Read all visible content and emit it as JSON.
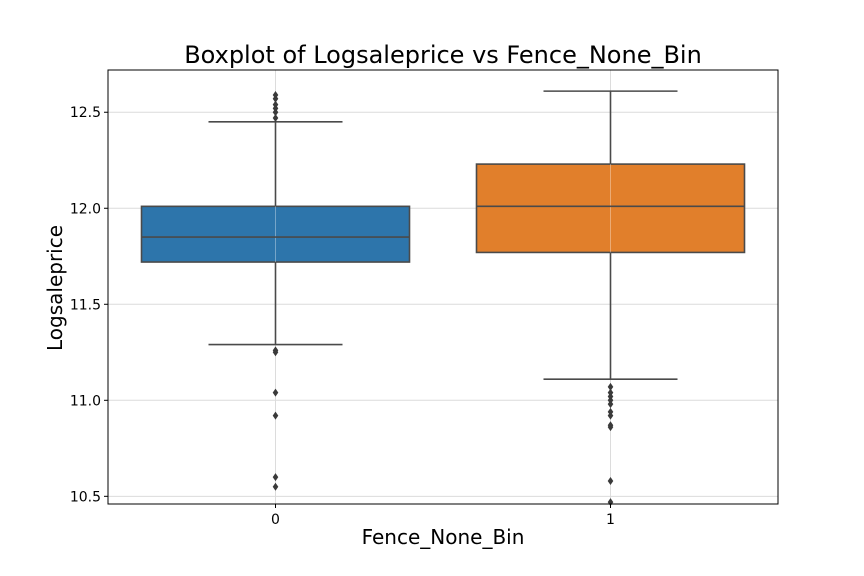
{
  "chart_data": {
    "type": "boxplot",
    "title": "Boxplot of Logsaleprice vs Fence_None_Bin",
    "xlabel": "Fence_None_Bin",
    "ylabel": "Logsaleprice",
    "categories": [
      "0",
      "1"
    ],
    "ylim": [
      10.46,
      12.72
    ],
    "yticks": [
      "10.5",
      "11.0",
      "11.5",
      "12.0",
      "12.5"
    ],
    "grid": true,
    "colors": [
      "#2d75ab",
      "#e17f2b"
    ],
    "boxes": [
      {
        "category": "0",
        "q1": 11.72,
        "median": 11.85,
        "q3": 12.01,
        "whisker_low": 11.29,
        "whisker_high": 12.45,
        "outliers": [
          12.59,
          12.57,
          12.54,
          12.52,
          12.5,
          12.47,
          11.26,
          11.25,
          11.04,
          10.92,
          10.6,
          10.55
        ]
      },
      {
        "category": "1",
        "q1": 11.77,
        "median": 12.01,
        "q3": 12.23,
        "whisker_low": 11.11,
        "whisker_high": 12.61,
        "outliers": [
          11.07,
          11.04,
          11.02,
          11.0,
          10.98,
          10.94,
          10.92,
          10.87,
          10.86,
          10.58,
          10.47
        ]
      }
    ]
  }
}
